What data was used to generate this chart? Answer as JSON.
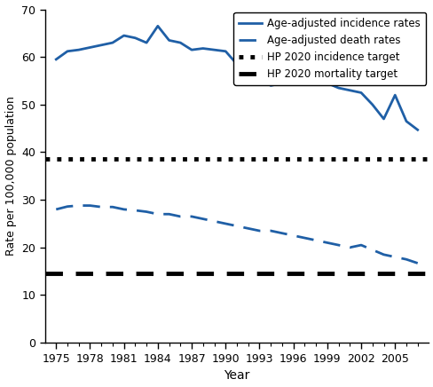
{
  "incidence_years": [
    1975,
    1976,
    1977,
    1978,
    1979,
    1980,
    1981,
    1982,
    1983,
    1984,
    1985,
    1986,
    1987,
    1988,
    1989,
    1990,
    1991,
    1992,
    1993,
    1994,
    1995,
    1996,
    1997,
    1998,
    1999,
    2000,
    2001,
    2002,
    2003,
    2004,
    2005,
    2006,
    2007
  ],
  "incidence_values": [
    59.5,
    61.2,
    61.5,
    62.0,
    62.5,
    63.0,
    64.5,
    64.0,
    63.0,
    66.5,
    63.5,
    63.0,
    61.5,
    61.8,
    61.5,
    61.2,
    58.5,
    57.0,
    55.5,
    54.0,
    54.5,
    57.0,
    56.5,
    56.0,
    54.5,
    53.5,
    53.0,
    52.5,
    50.0,
    47.0,
    52.0,
    46.5,
    44.7
  ],
  "death_years": [
    1975,
    1976,
    1977,
    1978,
    1979,
    1980,
    1981,
    1982,
    1983,
    1984,
    1985,
    1986,
    1987,
    1988,
    1989,
    1990,
    1991,
    1992,
    1993,
    1994,
    1995,
    1996,
    1997,
    1998,
    1999,
    2000,
    2001,
    2002,
    2003,
    2004,
    2005,
    2006,
    2007
  ],
  "death_values": [
    28.0,
    28.6,
    28.8,
    28.8,
    28.5,
    28.5,
    28.0,
    27.8,
    27.5,
    27.0,
    27.0,
    26.5,
    26.5,
    26.0,
    25.5,
    25.0,
    24.5,
    24.0,
    23.5,
    23.5,
    23.0,
    22.5,
    22.0,
    21.5,
    21.0,
    20.5,
    20.0,
    20.5,
    19.5,
    18.5,
    18.0,
    17.5,
    16.7
  ],
  "hp2020_incidence_target": 38.6,
  "hp2020_mortality_target": 14.5,
  "line_color": "#1f5fa6",
  "legend_labels": [
    "Age-adjusted incidence rates",
    "Age-adjusted death rates",
    "HP 2020 incidence target",
    "HP 2020 mortality target"
  ],
  "ylabel": "Rate per 100,000 population",
  "xlabel": "Year",
  "xlim": [
    1974,
    2008
  ],
  "ylim": [
    0,
    70
  ],
  "yticks": [
    0,
    10,
    20,
    30,
    40,
    50,
    60,
    70
  ],
  "xticks": [
    1975,
    1978,
    1981,
    1984,
    1987,
    1990,
    1993,
    1996,
    1999,
    2002,
    2005
  ],
  "minor_xticks": [
    1975,
    1976,
    1977,
    1978,
    1979,
    1980,
    1981,
    1982,
    1983,
    1984,
    1985,
    1986,
    1987,
    1988,
    1989,
    1990,
    1991,
    1992,
    1993,
    1994,
    1995,
    1996,
    1997,
    1998,
    1999,
    2000,
    2001,
    2002,
    2003,
    2004,
    2005,
    2006,
    2007
  ],
  "figsize": [
    4.89,
    4.36
  ],
  "dpi": 100
}
